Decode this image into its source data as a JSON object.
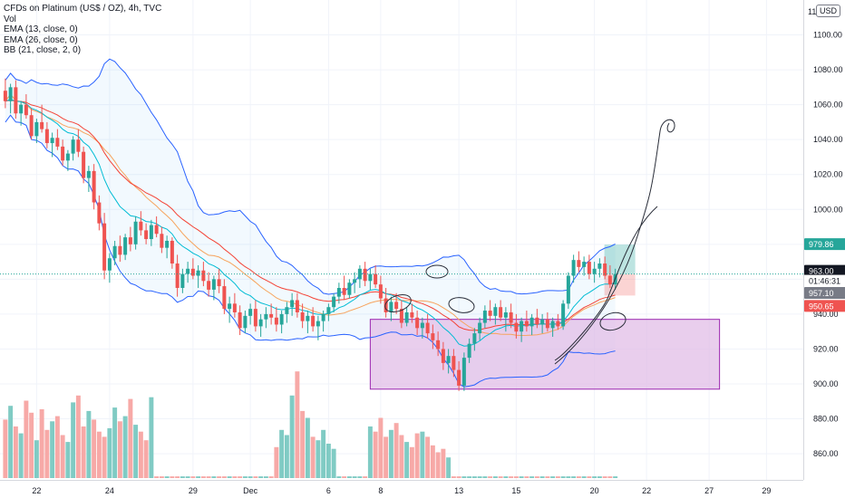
{
  "legend": {
    "symbol": "CFDs on Platinum (US$ / OZ), 4h, TVC",
    "vol": "Vol",
    "ema13": "EMA (13, close, 0)",
    "ema26": "EMA (26, close, 0)",
    "bb": "BB (21, close, 2, 0)"
  },
  "currency": "USD",
  "price_axis": {
    "min": 845,
    "max": 1120,
    "ticks": [
      "1100.00",
      "1080.00",
      "1060.00",
      "1040.00",
      "1020.00",
      "1000.00",
      "980.00",
      "960.00",
      "940.00",
      "920.00",
      "900.00",
      "880.00",
      "860.00"
    ],
    "top_partial": "11"
  },
  "price_labels": [
    {
      "text": "979.86",
      "value": 979.86,
      "color": "#26a69a"
    },
    {
      "text": "963.00",
      "value": 963.0,
      "color": "#131722"
    },
    {
      "text": "01:46:31",
      "value": 963.0,
      "color": "#131722"
    },
    {
      "text": "957.10",
      "value": 957.1,
      "color": "#787b86"
    },
    {
      "text": "950.65",
      "value": 950.65,
      "color": "#ef5350"
    }
  ],
  "time_axis": {
    "ticks": [
      {
        "label": "22",
        "bar": 6
      },
      {
        "label": "24",
        "bar": 20
      },
      {
        "label": "29",
        "bar": 36
      },
      {
        "label": "Dec",
        "bar": 47
      },
      {
        "label": "6",
        "bar": 62
      },
      {
        "label": "8",
        "bar": 72
      },
      {
        "label": "13",
        "bar": 87
      },
      {
        "label": "15",
        "bar": 98
      },
      {
        "label": "20",
        "bar": 113
      },
      {
        "label": "22",
        "bar": 123
      },
      {
        "label": "27",
        "bar": 135
      },
      {
        "label": "29",
        "bar": 146
      }
    ]
  },
  "colors": {
    "up": "#26a69a",
    "down": "#ef5350",
    "vol_up": "#80cbc4",
    "vol_down": "#f7a9a7",
    "ema13": "#00bcd4",
    "ema26": "#f44336",
    "bb_basis": "#f7a35c",
    "bb_band": "#2962ff",
    "bb_fill": "#2196f3",
    "zone_fill": "#e1bee7",
    "zone_border": "#9c27b0"
  },
  "chart_data": {
    "type": "candlestick",
    "timeframe": "4h",
    "ylim": [
      845,
      1120
    ],
    "candles": [
      {
        "o": 1068,
        "h": 1075,
        "l": 1058,
        "c": 1062
      },
      {
        "o": 1062,
        "h": 1072,
        "l": 1055,
        "c": 1070
      },
      {
        "o": 1070,
        "h": 1074,
        "l": 1052,
        "c": 1055
      },
      {
        "o": 1055,
        "h": 1062,
        "l": 1048,
        "c": 1060
      },
      {
        "o": 1060,
        "h": 1066,
        "l": 1052,
        "c": 1054
      },
      {
        "o": 1054,
        "h": 1058,
        "l": 1040,
        "c": 1042
      },
      {
        "o": 1042,
        "h": 1052,
        "l": 1038,
        "c": 1050
      },
      {
        "o": 1050,
        "h": 1060,
        "l": 1044,
        "c": 1046
      },
      {
        "o": 1046,
        "h": 1050,
        "l": 1035,
        "c": 1038
      },
      {
        "o": 1038,
        "h": 1044,
        "l": 1030,
        "c": 1041
      },
      {
        "o": 1041,
        "h": 1046,
        "l": 1034,
        "c": 1036
      },
      {
        "o": 1036,
        "h": 1040,
        "l": 1025,
        "c": 1028
      },
      {
        "o": 1028,
        "h": 1034,
        "l": 1022,
        "c": 1032
      },
      {
        "o": 1032,
        "h": 1042,
        "l": 1028,
        "c": 1040
      },
      {
        "o": 1040,
        "h": 1046,
        "l": 1030,
        "c": 1033
      },
      {
        "o": 1033,
        "h": 1036,
        "l": 1015,
        "c": 1018
      },
      {
        "o": 1018,
        "h": 1025,
        "l": 1010,
        "c": 1022
      },
      {
        "o": 1022,
        "h": 1026,
        "l": 1000,
        "c": 1004
      },
      {
        "o": 1004,
        "h": 1008,
        "l": 988,
        "c": 992
      },
      {
        "o": 992,
        "h": 998,
        "l": 960,
        "c": 965
      },
      {
        "o": 965,
        "h": 975,
        "l": 958,
        "c": 972
      },
      {
        "o": 972,
        "h": 982,
        "l": 968,
        "c": 979
      },
      {
        "o": 979,
        "h": 985,
        "l": 970,
        "c": 974
      },
      {
        "o": 974,
        "h": 986,
        "l": 971,
        "c": 984
      },
      {
        "o": 984,
        "h": 990,
        "l": 976,
        "c": 980
      },
      {
        "o": 980,
        "h": 996,
        "l": 977,
        "c": 993
      },
      {
        "o": 993,
        "h": 999,
        "l": 985,
        "c": 988
      },
      {
        "o": 988,
        "h": 992,
        "l": 980,
        "c": 983
      },
      {
        "o": 983,
        "h": 994,
        "l": 979,
        "c": 991
      },
      {
        "o": 991,
        "h": 996,
        "l": 984,
        "c": 986
      },
      {
        "o": 986,
        "h": 990,
        "l": 975,
        "c": 978
      },
      {
        "o": 978,
        "h": 985,
        "l": 972,
        "c": 982
      },
      {
        "o": 982,
        "h": 984,
        "l": 966,
        "c": 969
      },
      {
        "o": 969,
        "h": 974,
        "l": 950,
        "c": 955
      },
      {
        "o": 955,
        "h": 966,
        "l": 952,
        "c": 963
      },
      {
        "o": 963,
        "h": 970,
        "l": 958,
        "c": 966
      },
      {
        "o": 966,
        "h": 972,
        "l": 960,
        "c": 962
      },
      {
        "o": 962,
        "h": 968,
        "l": 955,
        "c": 965
      },
      {
        "o": 965,
        "h": 970,
        "l": 956,
        "c": 959
      },
      {
        "o": 959,
        "h": 964,
        "l": 950,
        "c": 954
      },
      {
        "o": 954,
        "h": 962,
        "l": 948,
        "c": 960
      },
      {
        "o": 960,
        "h": 966,
        "l": 952,
        "c": 956
      },
      {
        "o": 956,
        "h": 960,
        "l": 940,
        "c": 943
      },
      {
        "o": 943,
        "h": 950,
        "l": 935,
        "c": 946
      },
      {
        "o": 946,
        "h": 952,
        "l": 938,
        "c": 941
      },
      {
        "o": 941,
        "h": 945,
        "l": 928,
        "c": 932
      },
      {
        "o": 932,
        "h": 942,
        "l": 929,
        "c": 939
      },
      {
        "o": 939,
        "h": 946,
        "l": 934,
        "c": 943
      },
      {
        "o": 943,
        "h": 948,
        "l": 930,
        "c": 933
      },
      {
        "o": 933,
        "h": 940,
        "l": 927,
        "c": 937
      },
      {
        "o": 937,
        "h": 944,
        "l": 932,
        "c": 940
      },
      {
        "o": 940,
        "h": 946,
        "l": 934,
        "c": 938
      },
      {
        "o": 938,
        "h": 944,
        "l": 930,
        "c": 934
      },
      {
        "o": 934,
        "h": 942,
        "l": 929,
        "c": 940
      },
      {
        "o": 940,
        "h": 947,
        "l": 935,
        "c": 944
      },
      {
        "o": 944,
        "h": 952,
        "l": 939,
        "c": 948
      },
      {
        "o": 948,
        "h": 952,
        "l": 938,
        "c": 941
      },
      {
        "o": 941,
        "h": 946,
        "l": 932,
        "c": 936
      },
      {
        "o": 936,
        "h": 942,
        "l": 929,
        "c": 939
      },
      {
        "o": 939,
        "h": 944,
        "l": 930,
        "c": 933
      },
      {
        "o": 933,
        "h": 939,
        "l": 925,
        "c": 936
      },
      {
        "o": 936,
        "h": 942,
        "l": 930,
        "c": 940
      },
      {
        "o": 940,
        "h": 946,
        "l": 936,
        "c": 944
      },
      {
        "o": 944,
        "h": 952,
        "l": 941,
        "c": 950
      },
      {
        "o": 950,
        "h": 958,
        "l": 946,
        "c": 955
      },
      {
        "o": 955,
        "h": 962,
        "l": 948,
        "c": 951
      },
      {
        "o": 951,
        "h": 960,
        "l": 949,
        "c": 958
      },
      {
        "o": 958,
        "h": 964,
        "l": 952,
        "c": 960
      },
      {
        "o": 960,
        "h": 968,
        "l": 955,
        "c": 966
      },
      {
        "o": 966,
        "h": 970,
        "l": 956,
        "c": 959
      },
      {
        "o": 959,
        "h": 966,
        "l": 954,
        "c": 963
      },
      {
        "o": 963,
        "h": 968,
        "l": 955,
        "c": 957
      },
      {
        "o": 957,
        "h": 962,
        "l": 946,
        "c": 949
      },
      {
        "o": 949,
        "h": 955,
        "l": 938,
        "c": 941
      },
      {
        "o": 941,
        "h": 950,
        "l": 936,
        "c": 947
      },
      {
        "o": 947,
        "h": 952,
        "l": 940,
        "c": 943
      },
      {
        "o": 943,
        "h": 948,
        "l": 932,
        "c": 935
      },
      {
        "o": 935,
        "h": 944,
        "l": 933,
        "c": 941
      },
      {
        "o": 941,
        "h": 946,
        "l": 935,
        "c": 938
      },
      {
        "o": 938,
        "h": 942,
        "l": 928,
        "c": 932
      },
      {
        "o": 932,
        "h": 938,
        "l": 926,
        "c": 935
      },
      {
        "o": 935,
        "h": 940,
        "l": 926,
        "c": 929
      },
      {
        "o": 929,
        "h": 934,
        "l": 920,
        "c": 925
      },
      {
        "o": 925,
        "h": 930,
        "l": 916,
        "c": 920
      },
      {
        "o": 920,
        "h": 924,
        "l": 908,
        "c": 912
      },
      {
        "o": 912,
        "h": 920,
        "l": 906,
        "c": 916
      },
      {
        "o": 916,
        "h": 920,
        "l": 904,
        "c": 908
      },
      {
        "o": 908,
        "h": 913,
        "l": 896,
        "c": 899
      },
      {
        "o": 899,
        "h": 918,
        "l": 896,
        "c": 915
      },
      {
        "o": 915,
        "h": 926,
        "l": 912,
        "c": 923
      },
      {
        "o": 923,
        "h": 932,
        "l": 919,
        "c": 929
      },
      {
        "o": 929,
        "h": 938,
        "l": 925,
        "c": 935
      },
      {
        "o": 935,
        "h": 945,
        "l": 932,
        "c": 942
      },
      {
        "o": 942,
        "h": 948,
        "l": 936,
        "c": 939
      },
      {
        "o": 939,
        "h": 946,
        "l": 934,
        "c": 944
      },
      {
        "o": 944,
        "h": 948,
        "l": 936,
        "c": 938
      },
      {
        "o": 938,
        "h": 944,
        "l": 930,
        "c": 941
      },
      {
        "o": 941,
        "h": 946,
        "l": 932,
        "c": 935
      },
      {
        "o": 935,
        "h": 940,
        "l": 926,
        "c": 930
      },
      {
        "o": 930,
        "h": 938,
        "l": 924,
        "c": 936
      },
      {
        "o": 936,
        "h": 942,
        "l": 930,
        "c": 933
      },
      {
        "o": 933,
        "h": 940,
        "l": 928,
        "c": 938
      },
      {
        "o": 938,
        "h": 943,
        "l": 932,
        "c": 934
      },
      {
        "o": 934,
        "h": 940,
        "l": 929,
        "c": 937
      },
      {
        "o": 937,
        "h": 941,
        "l": 930,
        "c": 932
      },
      {
        "o": 932,
        "h": 938,
        "l": 927,
        "c": 936
      },
      {
        "o": 936,
        "h": 940,
        "l": 931,
        "c": 933
      },
      {
        "o": 933,
        "h": 948,
        "l": 931,
        "c": 946
      },
      {
        "o": 946,
        "h": 964,
        "l": 943,
        "c": 962
      },
      {
        "o": 962,
        "h": 974,
        "l": 958,
        "c": 971
      },
      {
        "o": 971,
        "h": 976,
        "l": 964,
        "c": 967
      },
      {
        "o": 967,
        "h": 973,
        "l": 962,
        "c": 970
      },
      {
        "o": 970,
        "h": 974,
        "l": 960,
        "c": 963
      },
      {
        "o": 963,
        "h": 970,
        "l": 958,
        "c": 966
      },
      {
        "o": 966,
        "h": 972,
        "l": 961,
        "c": 969
      },
      {
        "o": 969,
        "h": 973,
        "l": 960,
        "c": 962
      },
      {
        "o": 962,
        "h": 968,
        "l": 955,
        "c": 957
      },
      {
        "o": 957,
        "h": 966,
        "l": 954,
        "c": 963
      }
    ],
    "volume": [
      34,
      42,
      30,
      26,
      45,
      38,
      22,
      40,
      28,
      33,
      36,
      25,
      21,
      44,
      48,
      30,
      39,
      34,
      27,
      24,
      29,
      41,
      33,
      36,
      46,
      31,
      27,
      22,
      47,
      1,
      1,
      1,
      1,
      1,
      1,
      1,
      1,
      1,
      1,
      1,
      1,
      1,
      1,
      1,
      1,
      1,
      1,
      1,
      1,
      1,
      1,
      1,
      18,
      28,
      25,
      48,
      62,
      39,
      35,
      24,
      22,
      28,
      20,
      17,
      1,
      1,
      1,
      1,
      1,
      1,
      30,
      27,
      35,
      24,
      28,
      32,
      25,
      21,
      18,
      26,
      27,
      24,
      19,
      15,
      17,
      12,
      1,
      1,
      1,
      1,
      1,
      1,
      1,
      1,
      1,
      1,
      1,
      1,
      1,
      1,
      1,
      1,
      1,
      1,
      1,
      1,
      1,
      1,
      1,
      1,
      1,
      1,
      1,
      1,
      1,
      1,
      1,
      1,
      1,
      1
    ]
  }
}
